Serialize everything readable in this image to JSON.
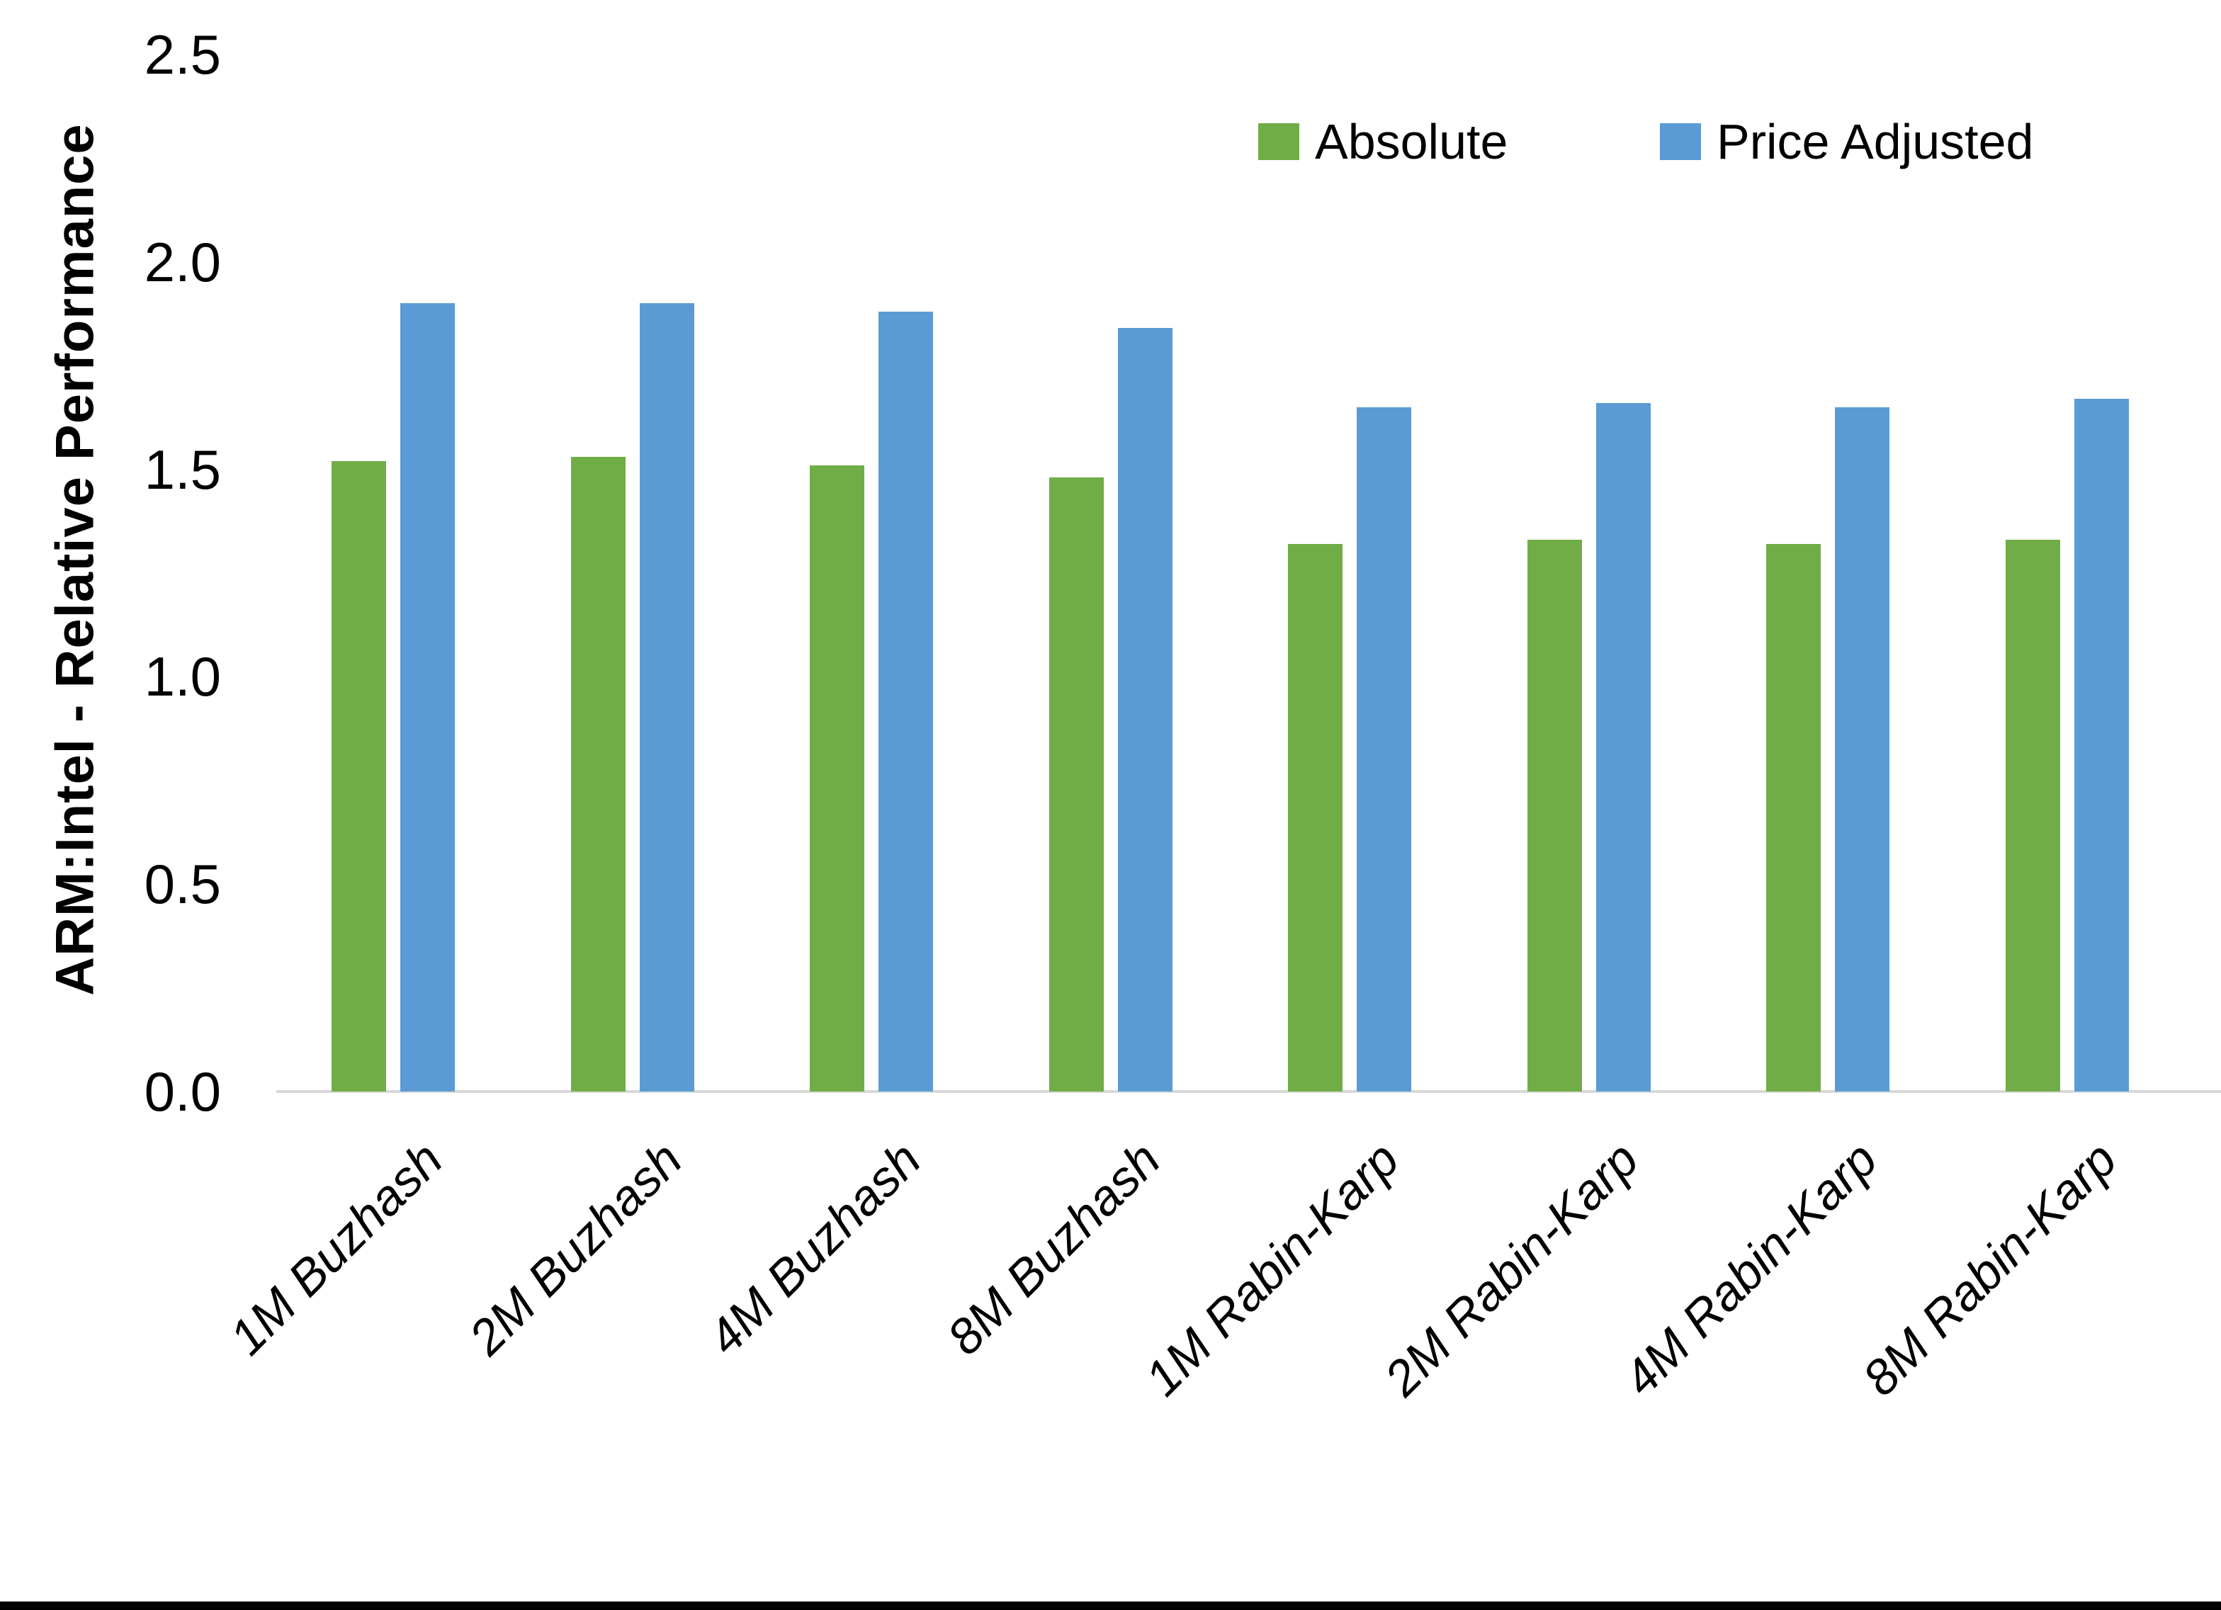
{
  "chart_data": {
    "type": "bar",
    "title": "",
    "ylabel": "ARM:Intel - Relative Performance",
    "xlabel": "",
    "ylim": [
      0.0,
      2.5
    ],
    "ytick_step": 0.5,
    "yticks": [
      "0.0",
      "0.5",
      "1.0",
      "1.5",
      "2.0",
      "2.5"
    ],
    "grid": false,
    "legend_position": "top-right",
    "categories": [
      "1M Buzhash",
      "2M Buzhash",
      "4M Buzhash",
      "8M Buzhash",
      "1M Rabin-Karp",
      "2M Rabin-Karp",
      "4M Rabin-Karp",
      "8M Rabin-Karp"
    ],
    "series": [
      {
        "name": "Absolute",
        "color": "#70AD47",
        "values": [
          1.52,
          1.53,
          1.51,
          1.48,
          1.32,
          1.33,
          1.32,
          1.33
        ]
      },
      {
        "name": "Price Adjusted",
        "color": "#5B9BD5",
        "values": [
          1.9,
          1.9,
          1.88,
          1.84,
          1.65,
          1.66,
          1.65,
          1.67
        ]
      }
    ]
  },
  "colors": {
    "background": "#FFFFFF",
    "axis_line": "#D9D9D9",
    "text": "#000000",
    "bottom_border": "#000000"
  }
}
